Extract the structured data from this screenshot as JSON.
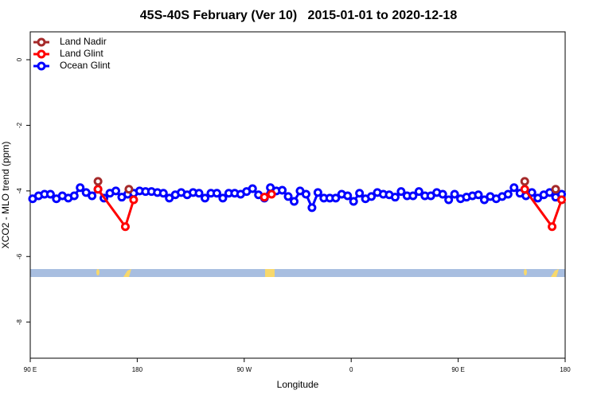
{
  "chart_data": {
    "type": "line",
    "title": "45S-40S February (Ver 10)   2015-01-01 to 2020-12-18",
    "xlabel": "Longitude",
    "ylabel": "XCO2 - MLO trend (ppm)",
    "xlim": [
      90,
      540
    ],
    "xticks": [
      {
        "value": 90,
        "label": "90 E"
      },
      180,
      {
        "value": 270,
        "label": "90 W"
      },
      {
        "value": 360,
        "label": "0"
      },
      {
        "value": 450,
        "label": "90 E"
      },
      {
        "value": 540,
        "label": "180"
      }
    ],
    "ylim": [
      -9.1,
      0.85
    ],
    "yticks": [
      0,
      -2,
      -4,
      -6,
      -8
    ],
    "legend": "top-left",
    "series": [
      {
        "name": "Land Nadir",
        "color": "#a52a2a",
        "x": [
          147,
          null,
          173,
          null,
          506,
          null,
          532
        ],
        "values": [
          -3.71,
          null,
          -3.95,
          null,
          -3.71,
          null,
          -3.95
        ]
      },
      {
        "name": "Land Glint",
        "color": "#ff0000",
        "x": [
          147,
          170,
          177,
          null,
          287,
          293,
          null,
          506,
          529,
          537
        ],
        "values": [
          -3.95,
          -5.09,
          -4.27,
          null,
          -4.19,
          -4.1,
          null,
          -3.95,
          -5.09,
          -4.27
        ]
      },
      {
        "name": "Ocean Glint",
        "color": "#0000ff",
        "x": [
          92,
          97,
          102,
          107,
          112,
          117,
          122,
          127,
          132,
          137,
          142,
          147,
          152,
          157,
          162,
          167,
          172,
          177,
          182,
          187,
          192,
          197,
          202,
          207,
          212,
          217,
          222,
          227,
          232,
          237,
          242,
          247,
          252,
          257,
          262,
          267,
          272,
          277,
          282,
          287,
          292,
          297,
          302,
          307,
          312,
          317,
          322,
          327,
          332,
          337,
          342,
          347,
          352,
          357,
          362,
          367,
          372,
          377,
          382,
          387,
          392,
          397,
          402,
          407,
          412,
          417,
          422,
          427,
          432,
          437,
          442,
          447,
          452,
          457,
          462,
          467,
          472,
          477,
          482,
          487,
          492,
          497,
          502,
          507,
          512,
          517,
          522,
          527,
          532,
          537
        ],
        "values": [
          -4.24,
          -4.15,
          -4.1,
          -4.1,
          -4.24,
          -4.15,
          -4.22,
          -4.15,
          -3.9,
          -4.05,
          -4.15,
          -3.95,
          -4.22,
          -4.07,
          -4.0,
          -4.19,
          -4.1,
          -4.07,
          -4.0,
          -4.02,
          -4.02,
          -4.05,
          -4.07,
          -4.22,
          -4.12,
          -4.05,
          -4.12,
          -4.05,
          -4.07,
          -4.22,
          -4.07,
          -4.07,
          -4.22,
          -4.07,
          -4.07,
          -4.1,
          -4.02,
          -3.93,
          -4.12,
          -4.22,
          -3.9,
          -4.0,
          -3.98,
          -4.17,
          -4.32,
          -4.0,
          -4.1,
          -4.51,
          -4.05,
          -4.22,
          -4.22,
          -4.22,
          -4.1,
          -4.15,
          -4.32,
          -4.07,
          -4.24,
          -4.17,
          -4.05,
          -4.1,
          -4.12,
          -4.19,
          -4.02,
          -4.15,
          -4.15,
          -4.02,
          -4.15,
          -4.15,
          -4.05,
          -4.1,
          -4.27,
          -4.1,
          -4.24,
          -4.19,
          -4.15,
          -4.12,
          -4.27,
          -4.17,
          -4.24,
          -4.17,
          -4.1,
          -3.9,
          -4.07,
          -4.15,
          -4.05,
          -4.22,
          -4.12,
          -4.05,
          -4.19,
          -4.1
        ]
      }
    ]
  }
}
